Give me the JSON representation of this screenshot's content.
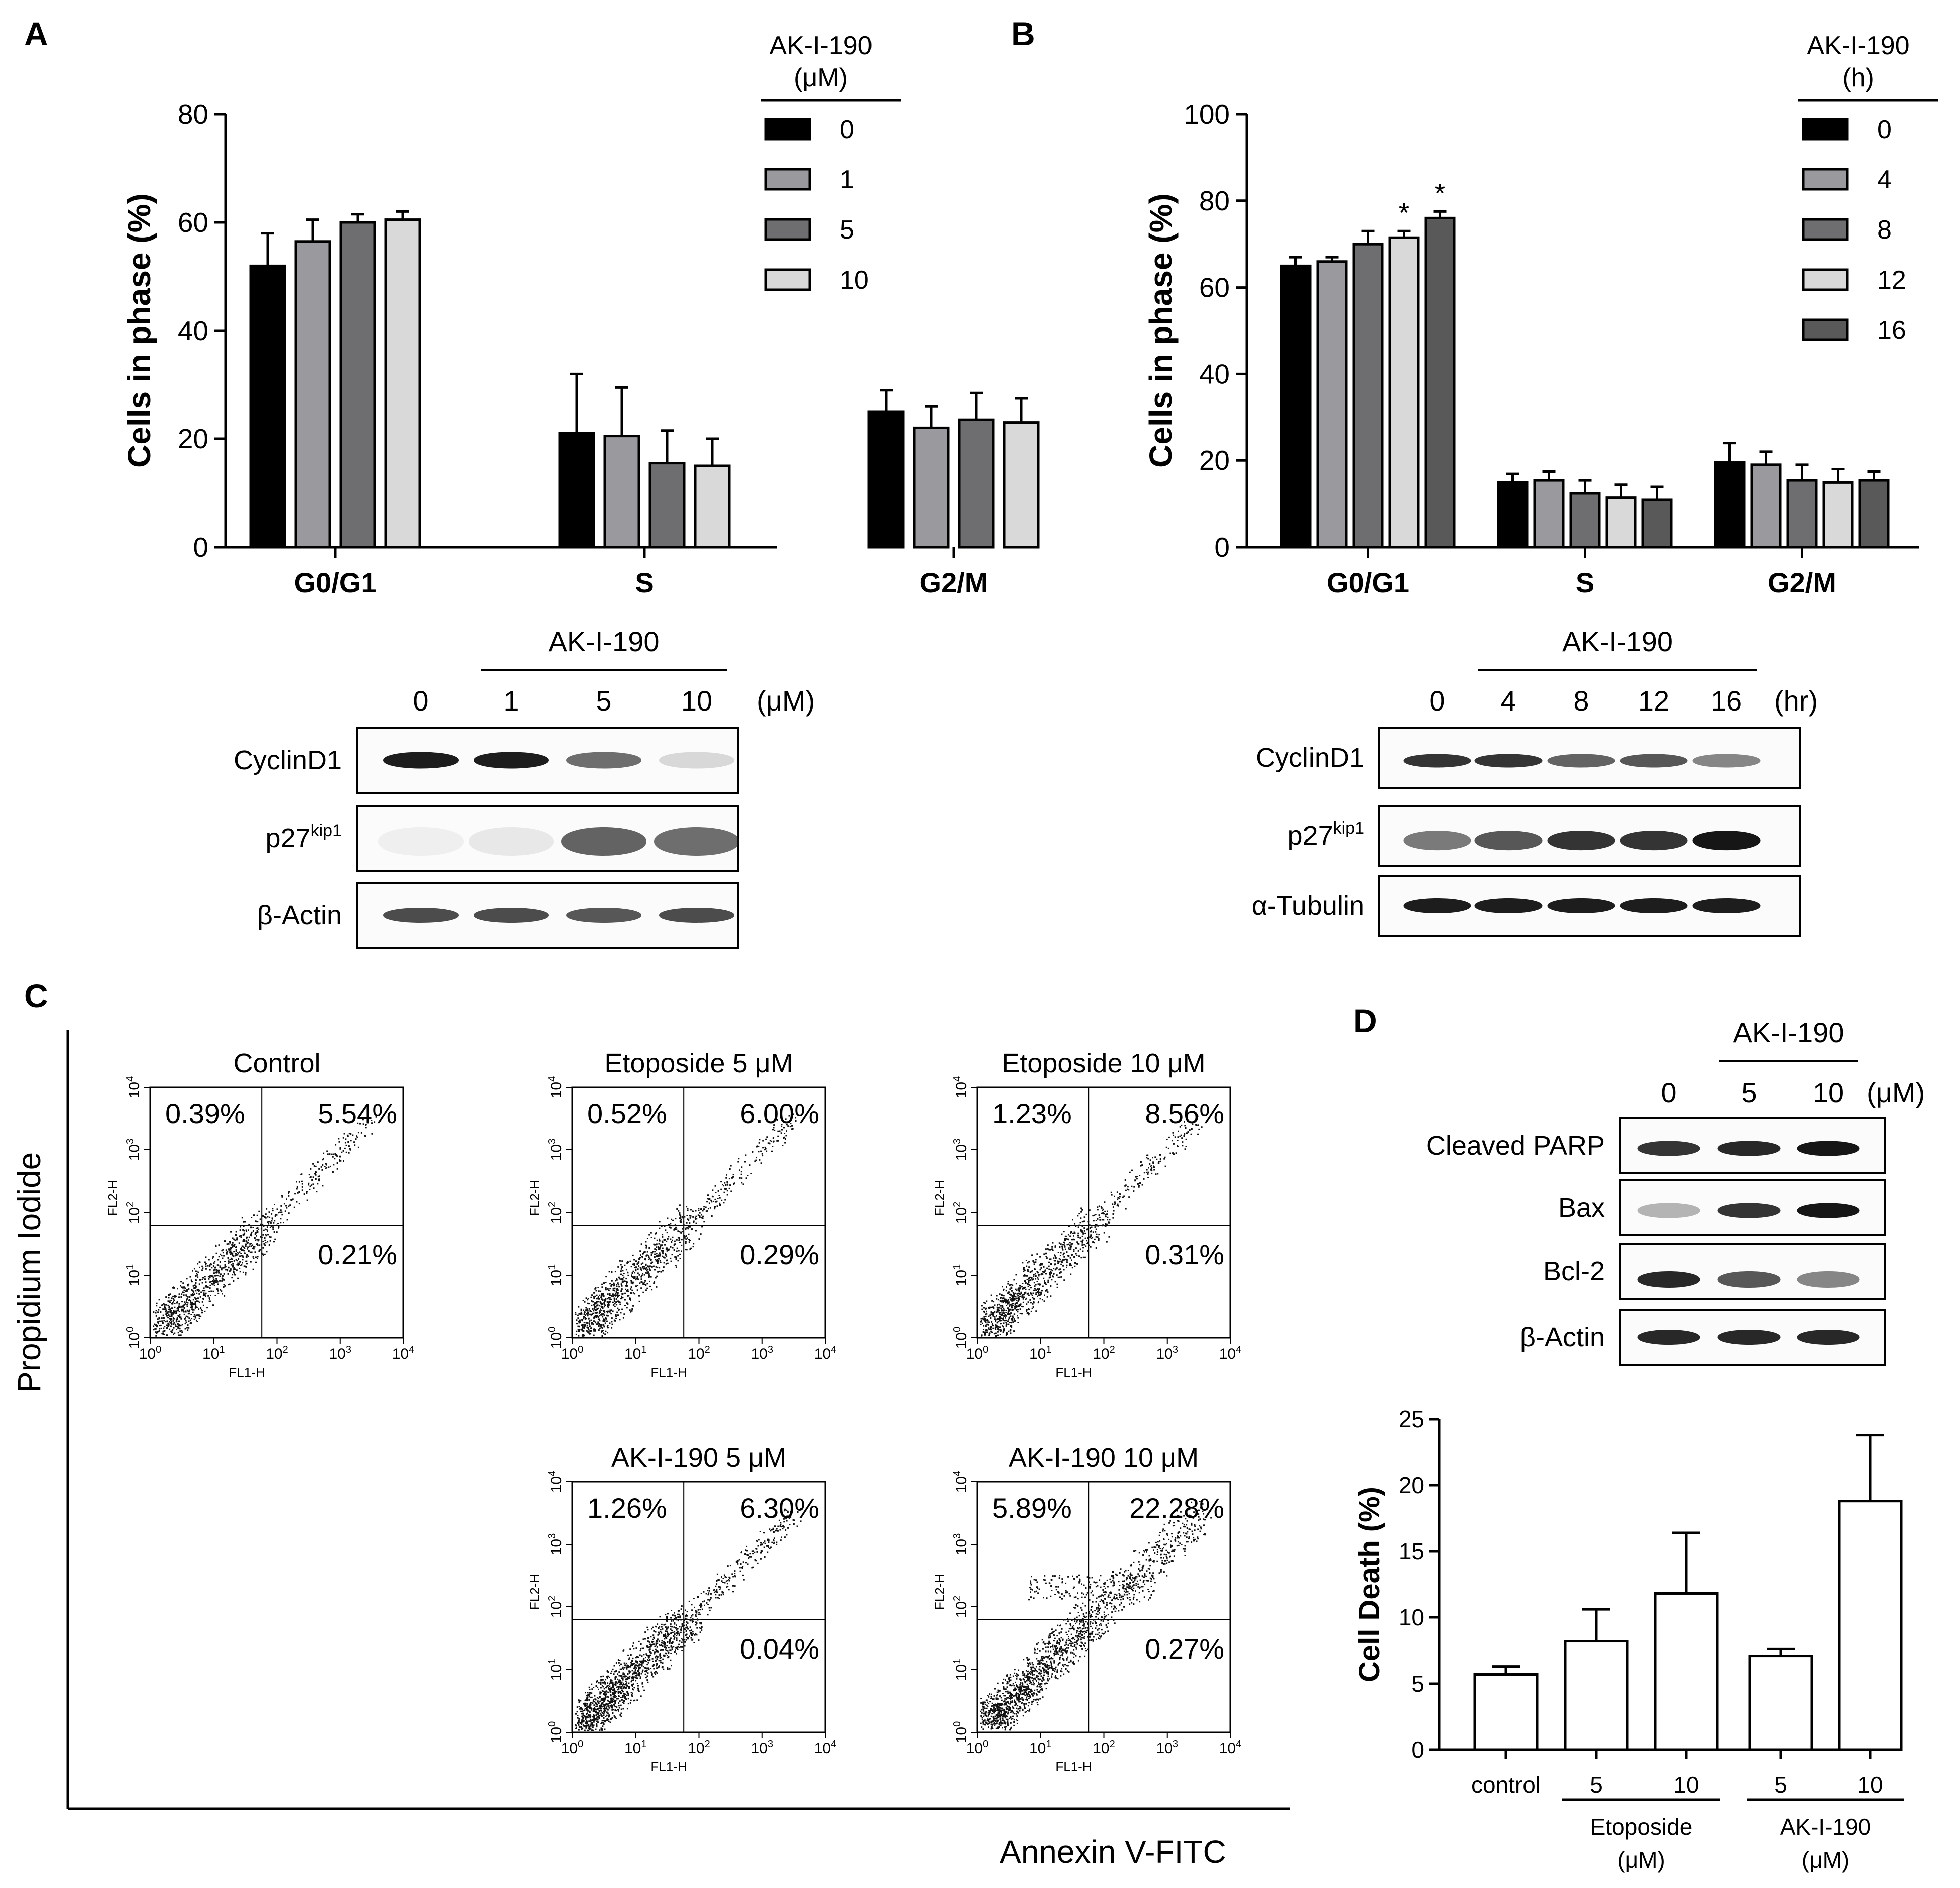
{
  "panels": {
    "A": "A",
    "B": "B",
    "C": "C",
    "D": "D"
  },
  "chart_data": [
    {
      "panel": "A",
      "type": "bar",
      "ylabel": "Cells in phase (%)",
      "ylim": [
        0,
        80
      ],
      "yticks": [
        0,
        20,
        40,
        60,
        80
      ],
      "categories": [
        "G0/G1",
        "S",
        "G2/M"
      ],
      "legend_title_lines": [
        "AK-I-190",
        "(μM)"
      ],
      "series": [
        {
          "name": "0",
          "color": "#000000",
          "values": [
            52,
            21,
            25
          ],
          "errors": [
            6,
            11,
            4
          ]
        },
        {
          "name": "1",
          "color": "#9a9a9e",
          "values": [
            56.5,
            20.5,
            22
          ],
          "errors": [
            4,
            9,
            4
          ]
        },
        {
          "name": "5",
          "color": "#6e6e70",
          "values": [
            60,
            15.5,
            23.5
          ],
          "errors": [
            1.5,
            6,
            5
          ]
        },
        {
          "name": "10",
          "color": "#d9d9d9",
          "values": [
            60.5,
            15,
            23
          ],
          "errors": [
            1.5,
            5,
            4.5
          ]
        }
      ]
    },
    {
      "panel": "B",
      "type": "bar",
      "ylabel": "Cells in phase (%)",
      "ylim": [
        0,
        100
      ],
      "yticks": [
        0,
        20,
        40,
        60,
        80,
        100
      ],
      "categories": [
        "G0/G1",
        "S",
        "G2/M"
      ],
      "legend_title_lines": [
        "AK-I-190",
        "(h)"
      ],
      "significance": {
        "series": [
          3,
          4
        ],
        "category": 0,
        "mark": "*"
      },
      "series": [
        {
          "name": "0",
          "color": "#000000",
          "values": [
            65,
            15,
            19.5
          ],
          "errors": [
            2,
            2,
            4.5
          ]
        },
        {
          "name": "4",
          "color": "#9a9a9e",
          "values": [
            66,
            15.5,
            19
          ],
          "errors": [
            1,
            2,
            3
          ]
        },
        {
          "name": "8",
          "color": "#6e6e70",
          "values": [
            70,
            12.5,
            15.5
          ],
          "errors": [
            3,
            3,
            3.5
          ]
        },
        {
          "name": "12",
          "color": "#d9d9d9",
          "values": [
            71.5,
            11.5,
            15
          ],
          "errors": [
            1.5,
            3,
            3
          ]
        },
        {
          "name": "16",
          "color": "#595959",
          "values": [
            76,
            11,
            15.5
          ],
          "errors": [
            1.5,
            3,
            2
          ]
        }
      ]
    },
    {
      "panel": "D",
      "type": "bar",
      "ylabel": "Cell Death (%)",
      "ylim": [
        0,
        25
      ],
      "yticks": [
        0,
        5,
        10,
        15,
        20,
        25
      ],
      "categories": [
        "control",
        "5",
        "10",
        "5",
        "10"
      ],
      "values": [
        5.7,
        8.2,
        11.8,
        7.1,
        18.8
      ],
      "errors": [
        0.6,
        2.4,
        4.6,
        0.5,
        5.0
      ],
      "groups": [
        {
          "label": "Etoposide",
          "unit": "(μM)",
          "members": [
            1,
            2
          ]
        },
        {
          "label": "AK-I-190",
          "unit": "(μM)",
          "members": [
            3,
            4
          ]
        }
      ]
    }
  ],
  "blot_a": {
    "header": "AK-I-190",
    "lanes": [
      "0",
      "1",
      "5",
      "10"
    ],
    "unit": "(μM)",
    "rows": [
      {
        "label": "CyclinD1",
        "sup": ""
      },
      {
        "label": "p27",
        "sup": "kip1"
      },
      {
        "label": "β-Actin",
        "sup": ""
      }
    ]
  },
  "blot_b": {
    "header": "AK-I-190",
    "lanes": [
      "0",
      "4",
      "8",
      "12",
      "16"
    ],
    "unit": "(hr)",
    "rows": [
      {
        "label": "CyclinD1",
        "sup": ""
      },
      {
        "label": "p27",
        "sup": "kip1"
      },
      {
        "label": "α-Tubulin",
        "sup": ""
      }
    ]
  },
  "blot_d": {
    "header": "AK-I-190",
    "lanes": [
      "0",
      "5",
      "10"
    ],
    "unit": "(μM)",
    "rows": [
      {
        "label": "Cleaved PARP"
      },
      {
        "label": "Bax"
      },
      {
        "label": "Bcl-2"
      },
      {
        "label": "β-Actin"
      }
    ]
  },
  "flow": {
    "y_axis_title": "Propidium Iodide",
    "x_axis_title": "Annexin V-FITC",
    "plot_x_label": "FL1-H",
    "plot_y_label": "FL2-H",
    "tick_base": "10",
    "tick_exponents": [
      "0",
      "1",
      "2",
      "3",
      "4"
    ],
    "plots": [
      {
        "title": "Control",
        "ul": "0.39%",
        "ur": "5.54%",
        "lr": "0.21%"
      },
      {
        "title": "Etoposide 5 μM",
        "ul": "0.52%",
        "ur": "6.00%",
        "lr": "0.29%"
      },
      {
        "title": "Etoposide 10 μM",
        "ul": "1.23%",
        "ur": "8.56%",
        "lr": "0.31%"
      },
      {
        "title": "AK-I-190 5 μM",
        "ul": "1.26%",
        "ur": "6.30%",
        "lr": "0.04%"
      },
      {
        "title": "AK-I-190 10 μM",
        "ul": "5.89%",
        "ur": "22.28%",
        "lr": "0.27%"
      }
    ]
  }
}
